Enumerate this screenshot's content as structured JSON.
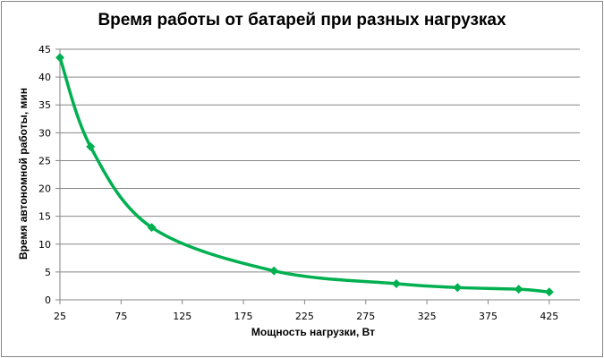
{
  "chart_data": {
    "type": "line",
    "title": "Время работы от батарей при разных нагрузках",
    "xlabel": "Мощность нагрузки, Вт",
    "ylabel": "Время автономной работы, мин",
    "x": [
      25,
      50,
      100,
      200,
      300,
      350,
      400,
      425
    ],
    "series": [
      {
        "name": "Время работы",
        "values": [
          43.5,
          27.5,
          13.0,
          5.2,
          2.9,
          2.2,
          1.9,
          1.4
        ],
        "color": "#00b050",
        "marker": "diamond",
        "smooth": true
      }
    ],
    "xlim": [
      25,
      450
    ],
    "ylim": [
      0,
      45
    ],
    "xticks": [
      25,
      75,
      125,
      175,
      225,
      275,
      325,
      375,
      425
    ],
    "yticks": [
      0,
      5,
      10,
      15,
      20,
      25,
      30,
      35,
      40,
      45
    ],
    "grid": {
      "horizontal": true,
      "vertical": false
    },
    "legend": "none"
  },
  "colors": {
    "line": "#00b050",
    "grid": "#868686",
    "axis": "#868686"
  }
}
